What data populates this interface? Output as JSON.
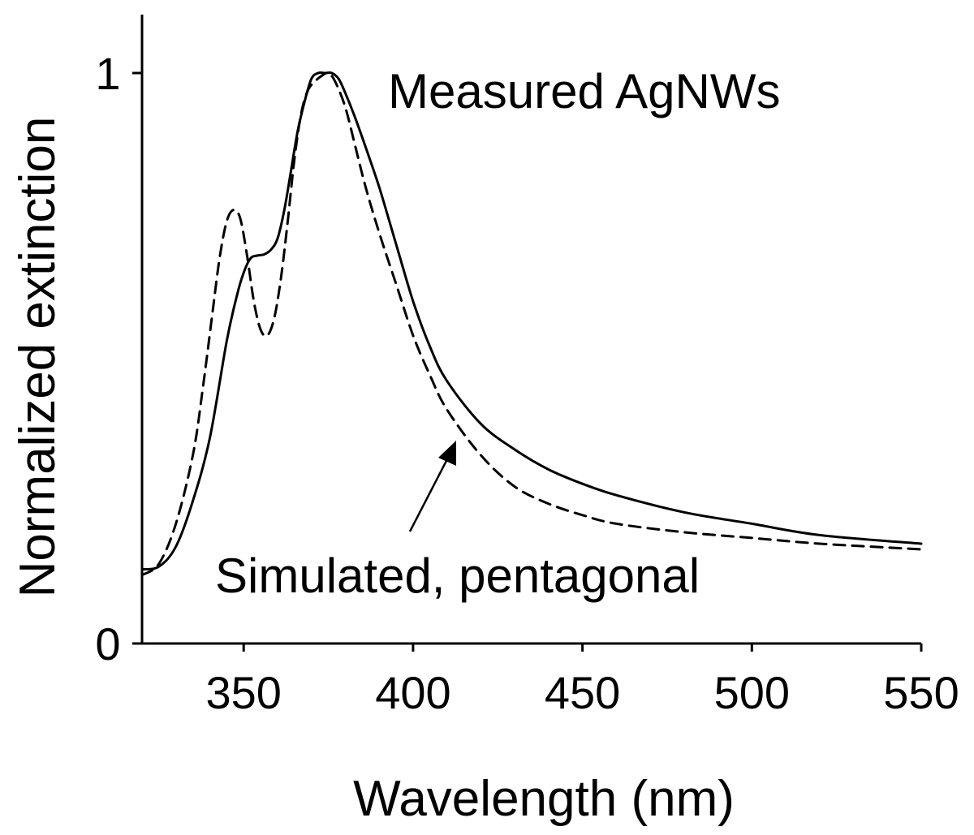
{
  "chart_data": {
    "type": "line",
    "title": "",
    "xlabel": "Wavelength (nm)",
    "ylabel": "Normalized extinction",
    "xlim": [
      320,
      550
    ],
    "ylim": [
      0,
      1.1
    ],
    "x_ticks": [
      350,
      400,
      450,
      500,
      550
    ],
    "x_tick_labels": [
      "350",
      "400",
      "450",
      "500",
      "550"
    ],
    "y_ticks": [
      0,
      1
    ],
    "y_tick_labels": [
      "0",
      "1"
    ],
    "grid": false,
    "legend": "none",
    "series": [
      {
        "style": "solid",
        "color": "#000000",
        "x": [
          320,
          325,
          330,
          335,
          340,
          345,
          348,
          350,
          352,
          354,
          356,
          358,
          360,
          362,
          364,
          366,
          368,
          370,
          372,
          374,
          376,
          378,
          380,
          383,
          386,
          390,
          395,
          400,
          405,
          410,
          420,
          430,
          440,
          450,
          460,
          480,
          500,
          520,
          550
        ],
        "y": [
          0.13,
          0.135,
          0.17,
          0.25,
          0.36,
          0.53,
          0.61,
          0.65,
          0.675,
          0.68,
          0.682,
          0.69,
          0.71,
          0.76,
          0.83,
          0.9,
          0.95,
          0.99,
          1.0,
          1.0,
          1.0,
          0.99,
          0.965,
          0.92,
          0.87,
          0.8,
          0.7,
          0.6,
          0.52,
          0.46,
          0.385,
          0.34,
          0.305,
          0.28,
          0.26,
          0.23,
          0.21,
          0.19,
          0.175
        ]
      },
      {
        "style": "dashed",
        "color": "#000000",
        "x": [
          320,
          325,
          330,
          335,
          338,
          341,
          343,
          345,
          347,
          349,
          351,
          353,
          355,
          357,
          359,
          361,
          363,
          365,
          367,
          369,
          371,
          373,
          375,
          377,
          380,
          383,
          386,
          390,
          395,
          400,
          405,
          410,
          420,
          430,
          440,
          450,
          460,
          480,
          500,
          520,
          550
        ],
        "y": [
          0.12,
          0.14,
          0.21,
          0.33,
          0.45,
          0.59,
          0.68,
          0.74,
          0.76,
          0.745,
          0.68,
          0.6,
          0.55,
          0.54,
          0.57,
          0.64,
          0.74,
          0.85,
          0.93,
          0.97,
          0.985,
          0.995,
          1.0,
          0.985,
          0.94,
          0.87,
          0.8,
          0.72,
          0.63,
          0.54,
          0.47,
          0.41,
          0.33,
          0.275,
          0.245,
          0.225,
          0.21,
          0.195,
          0.185,
          0.175,
          0.165
        ]
      }
    ],
    "annotations": [
      {
        "text": "Measured AgNWs",
        "arrow": false
      },
      {
        "text": "Simulated, pentagonal",
        "arrow": true
      }
    ]
  }
}
